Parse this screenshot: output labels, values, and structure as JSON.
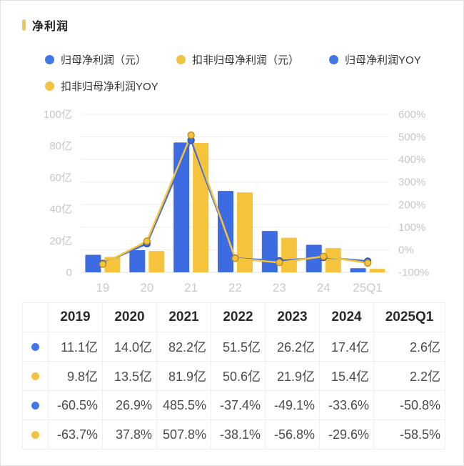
{
  "header": {
    "title": "净利润",
    "accent_color": "#f0c659"
  },
  "colors": {
    "blue": "#3d6be1",
    "yellow": "#f6c43c",
    "dot_blue": "#4377e7",
    "dot_yellow": "#f2c243",
    "grid": "#ededed",
    "axis_line": "#e2e2e2",
    "axis_text": "#c6c6c6",
    "x_text": "#c9c9c9"
  },
  "legend": {
    "row1": [
      {
        "label": "归母净利润（元）",
        "color": "#4377e7"
      },
      {
        "label": "扣非归母净利润（元）",
        "color": "#f2c243"
      },
      {
        "label": "归母净利润YOY",
        "color": "#4377e7"
      }
    ],
    "row2": [
      {
        "label": "扣非归母净利润YOY",
        "color": "#f2c243"
      }
    ]
  },
  "chart_data": {
    "type": "bar",
    "subtype": "combo-bar-line-dual-axis",
    "categories": [
      "19",
      "20",
      "21",
      "22",
      "23",
      "24",
      "25Q1"
    ],
    "series": [
      {
        "name": "归母净利润（元）",
        "kind": "bar",
        "axis": "left",
        "color": "#3d6be1",
        "values": [
          11.1,
          14.0,
          82.2,
          51.5,
          26.2,
          17.4,
          2.6
        ]
      },
      {
        "name": "扣非归母净利润（元）",
        "kind": "bar",
        "axis": "left",
        "color": "#f6c43c",
        "values": [
          9.8,
          13.5,
          81.9,
          50.6,
          21.9,
          15.4,
          2.2
        ]
      },
      {
        "name": "归母净利润YOY",
        "kind": "line",
        "axis": "right",
        "color": "#3d6be1",
        "marker_stroke": "#2d4fa8",
        "values": [
          -60.5,
          26.9,
          485.5,
          -37.4,
          -49.1,
          -33.6,
          -50.8
        ]
      },
      {
        "name": "扣非归母净利润YOY",
        "kind": "line",
        "axis": "right",
        "color": "#f6c43c",
        "marker_stroke": "#b98f1f",
        "values": [
          -63.7,
          37.8,
          507.8,
          -38.1,
          -56.8,
          -29.6,
          -58.5
        ]
      }
    ],
    "left_axis": {
      "min": 0,
      "max": 100,
      "unit": "亿",
      "ticks": [
        "100亿",
        "80亿",
        "60亿",
        "40亿",
        "20亿",
        "0"
      ]
    },
    "right_axis": {
      "min": -100,
      "max": 600,
      "unit": "%",
      "ticks": [
        "600%",
        "500%",
        "400%",
        "300%",
        "200%",
        "100%",
        "0%",
        "-100%"
      ]
    },
    "grid": true,
    "legend_position": "top"
  },
  "table": {
    "header": [
      "",
      "2019",
      "2020",
      "2021",
      "2022",
      "2023",
      "2024",
      "2025Q1"
    ],
    "rows": [
      {
        "marker_color": "#4377e7",
        "cells": [
          "11.1亿",
          "14.0亿",
          "82.2亿",
          "51.5亿",
          "26.2亿",
          "17.4亿",
          "2.6亿"
        ]
      },
      {
        "marker_color": "#f2c243",
        "cells": [
          "9.8亿",
          "13.5亿",
          "81.9亿",
          "50.6亿",
          "21.9亿",
          "15.4亿",
          "2.2亿"
        ]
      },
      {
        "marker_color": "#4377e7",
        "cells": [
          "-60.5%",
          "26.9%",
          "485.5%",
          "-37.4%",
          "-49.1%",
          "-33.6%",
          "-50.8%"
        ]
      },
      {
        "marker_color": "#f2c243",
        "cells": [
          "-63.7%",
          "37.8%",
          "507.8%",
          "-38.1%",
          "-56.8%",
          "-29.6%",
          "-58.5%"
        ]
      }
    ]
  }
}
